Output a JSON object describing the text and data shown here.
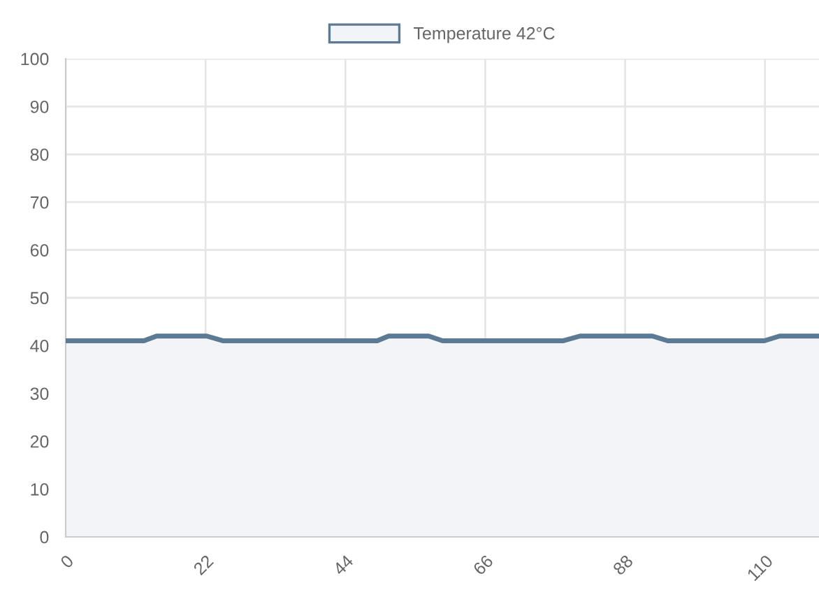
{
  "chart_data": {
    "type": "area",
    "x": [
      0,
      12.3,
      14.3,
      22.2,
      24.8,
      49,
      50.8,
      57.1,
      59.3,
      78.2,
      80.9,
      92.3,
      94.7,
      109.9,
      112.3,
      118.5
    ],
    "series": [
      {
        "name": "Temperature 42°C",
        "color": "#5b7a95",
        "values": [
          41,
          41,
          42,
          42,
          41,
          41,
          42,
          42,
          41,
          41,
          42,
          42,
          41,
          41,
          42,
          42
        ]
      }
    ],
    "xlim": [
      0,
      118.5
    ],
    "xticks": [
      0,
      22,
      44,
      66,
      88,
      110
    ],
    "ylim": [
      0,
      100
    ],
    "yticks": [
      0,
      10,
      20,
      30,
      40,
      50,
      60,
      70,
      80,
      90,
      100
    ],
    "grid": true,
    "legend": "top",
    "marker": "none",
    "line_style": "solid"
  }
}
